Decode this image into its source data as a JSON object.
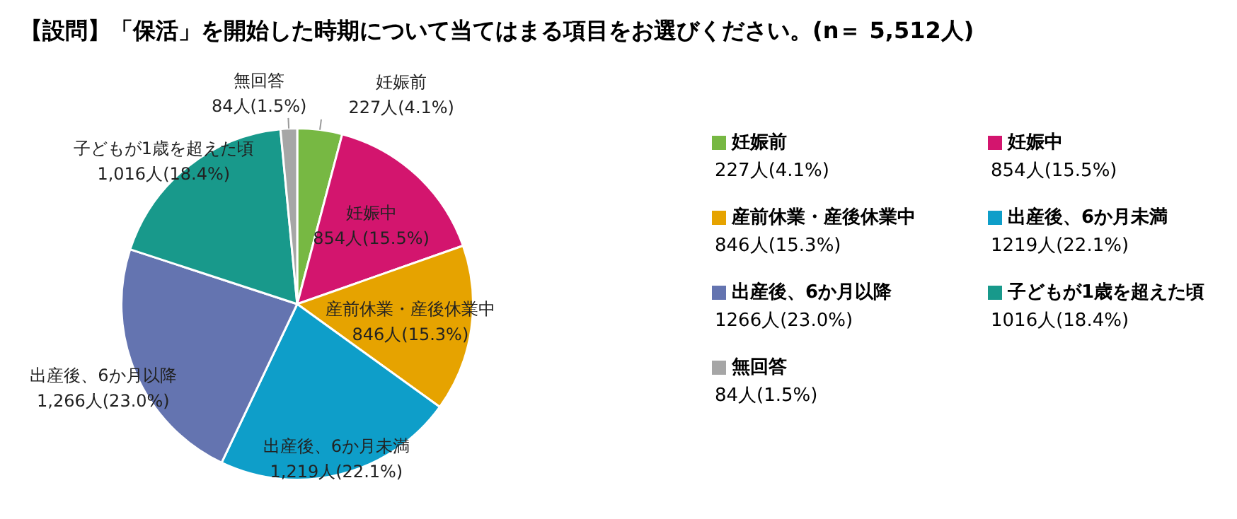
{
  "chart_data": {
    "type": "pie",
    "title": "【設問】「保活」を開始した時期について当てはまる項目をお選びください。(n＝ 5,512人)",
    "categories": [
      "妊娠前",
      "妊娠中",
      "産前休業・産後休業中",
      "出産後、6か月未満",
      "出産後、6か月以降",
      "子どもが1歳を超えた頃",
      "無回答"
    ],
    "values": [
      227,
      854,
      846,
      1219,
      1266,
      1016,
      84
    ],
    "colors": [
      "#77b843",
      "#d3156e",
      "#e6a300",
      "#0e9ec9",
      "#6474b0",
      "#18998b",
      "#a6a6a6"
    ],
    "value_labels": [
      "227人(4.1%)",
      "854人(15.5%)",
      "846人(15.3%)",
      "1,219人(22.1%)",
      "1,266人(23.0%)",
      "1,016人(18.4%)",
      "84人(1.5%)"
    ],
    "annotations": [
      "227人(4.1%)",
      "854人(15.5%)",
      "846人(15.3%)",
      "1219人(22.1%)",
      "1266人(23.0%)",
      "1016人(18.4%)",
      "84人(1.5%)"
    ],
    "legend": "right"
  }
}
